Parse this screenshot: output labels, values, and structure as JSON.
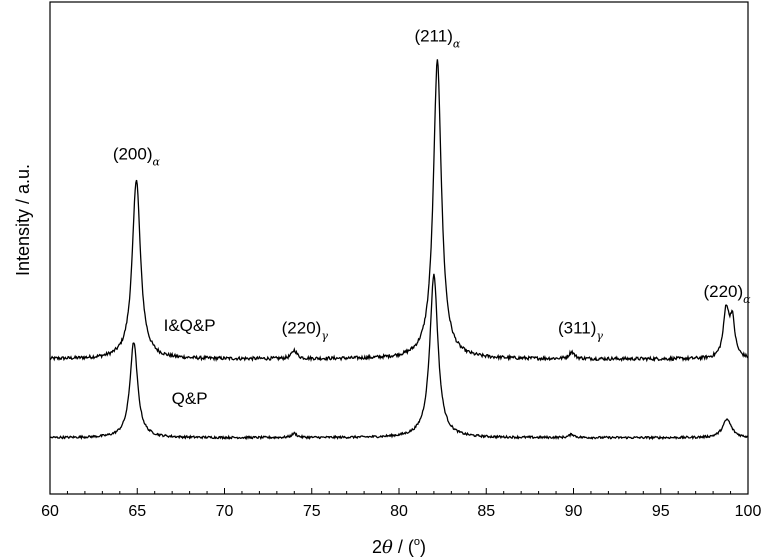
{
  "chart_data": {
    "type": "line",
    "title": "",
    "xlabel": {
      "prefix": "2",
      "symbol": "θ",
      "unit_text": " / (",
      "unit_sup": "o",
      "unit_close": ")"
    },
    "ylabel": "Intensity / a.u.",
    "xlim": [
      60,
      100
    ],
    "xticks": [
      "60",
      "65",
      "70",
      "75",
      "80",
      "85",
      "90",
      "95",
      "100"
    ],
    "y_ticks_shown": false,
    "grid": false,
    "line_color": "#000000",
    "series": [
      {
        "name": "I&Q&P",
        "baseline": 0.28,
        "peaks": [
          {
            "x": 64.95,
            "height": 0.64,
            "width": 0.32
          },
          {
            "x": 74.0,
            "height": 0.03,
            "width": 0.2
          },
          {
            "x": 82.2,
            "height": 1.06,
            "width": 0.32
          },
          {
            "x": 89.9,
            "height": 0.025,
            "width": 0.2
          },
          {
            "x": 98.75,
            "height": 0.17,
            "width": 0.22
          },
          {
            "x": 99.1,
            "height": 0.13,
            "width": 0.2
          }
        ],
        "noise": 0.006
      },
      {
        "name": "Q&P",
        "baseline": 0.0,
        "peaks": [
          {
            "x": 64.8,
            "height": 0.34,
            "width": 0.3
          },
          {
            "x": 74.0,
            "height": 0.015,
            "width": 0.2
          },
          {
            "x": 82.0,
            "height": 0.58,
            "width": 0.32
          },
          {
            "x": 89.9,
            "height": 0.012,
            "width": 0.2
          },
          {
            "x": 98.8,
            "height": 0.065,
            "width": 0.35
          }
        ],
        "noise": 0.004
      }
    ],
    "series_labels": [
      {
        "text": "I&Q&P",
        "x": 68.0,
        "y": 0.38
      },
      {
        "text": "Q&P",
        "x": 68.0,
        "y": 0.12
      }
    ],
    "annotations": [
      {
        "main": "(200)",
        "sub": "α",
        "x": 64.95,
        "y": 0.99
      },
      {
        "main": "(220)",
        "sub": "γ",
        "x": 74.6,
        "y": 0.37
      },
      {
        "main": "(211)",
        "sub": "α",
        "x": 82.2,
        "y": 1.41
      },
      {
        "main": "(311)",
        "sub": "γ",
        "x": 90.4,
        "y": 0.37
      },
      {
        "main": "(220)",
        "sub": "α",
        "x": 98.8,
        "y": 0.5
      }
    ]
  }
}
